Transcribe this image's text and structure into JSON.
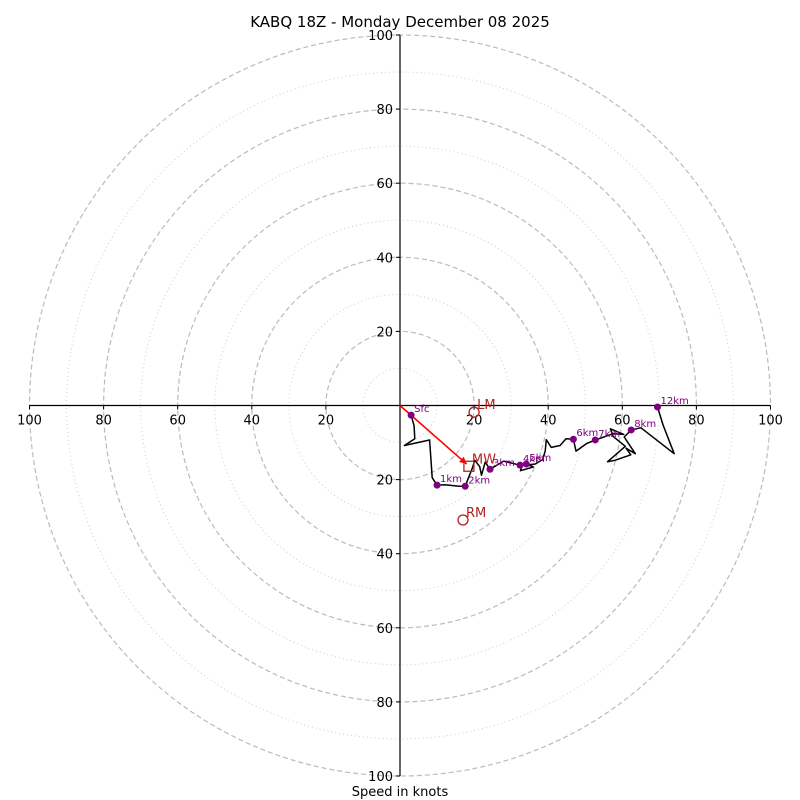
{
  "chart_data": {
    "type": "hodograph",
    "title": "KABQ 18Z - Monday December 08 2025",
    "xlabel": "Speed in knots",
    "ylabel": "",
    "range_kt": 100,
    "major_rings_kt": [
      20,
      40,
      60,
      80,
      100
    ],
    "minor_rings_kt": [
      10,
      30,
      50,
      70,
      90
    ],
    "tick_labels": {
      "left": [
        "100",
        "80",
        "60",
        "40",
        "20"
      ],
      "right": [
        "20",
        "40",
        "60",
        "80",
        "100"
      ],
      "top": [
        "20",
        "40",
        "60",
        "80",
        "100"
      ],
      "bottom": [
        "20",
        "40",
        "60",
        "80",
        "100"
      ]
    },
    "tick_values": [
      20,
      40,
      60,
      80,
      100
    ],
    "colors": {
      "trace": "#000000",
      "height_markers": "#800080",
      "storm_motion": "#b22222",
      "mean_wind_vector": "#ff0000",
      "rings": "#bbbbbb"
    },
    "trace_uv": [
      [
        3.0,
        -2.6
      ],
      [
        3.8,
        -5.5
      ],
      [
        4.0,
        -9.0
      ],
      [
        1.2,
        -10.8
      ],
      [
        8.0,
        -9.3
      ],
      [
        8.3,
        -14.0
      ],
      [
        8.7,
        -19.5
      ],
      [
        10.0,
        -21.5
      ],
      [
        12.0,
        -21.4
      ],
      [
        16.0,
        -21.8
      ],
      [
        17.6,
        -21.8
      ],
      [
        18.5,
        -19.5
      ],
      [
        19.5,
        -17.0
      ],
      [
        20.2,
        -14.8
      ],
      [
        21.5,
        -16.5
      ],
      [
        22.0,
        -18.8
      ],
      [
        23.0,
        -15.3
      ],
      [
        24.3,
        -17.2
      ],
      [
        28.0,
        -15.0
      ],
      [
        32.4,
        -16.1
      ],
      [
        34.1,
        -15.8
      ],
      [
        36.0,
        -16.6
      ],
      [
        32.5,
        -17.6
      ],
      [
        33.0,
        -16.2
      ],
      [
        36.5,
        -15.8
      ],
      [
        38.5,
        -14.6
      ],
      [
        39.2,
        -12.3
      ],
      [
        39.5,
        -9.2
      ],
      [
        40.8,
        -11.3
      ],
      [
        43.2,
        -10.8
      ],
      [
        44.8,
        -9.0
      ],
      [
        46.8,
        -9.1
      ],
      [
        47.5,
        -12.3
      ],
      [
        50.5,
        -10.2
      ],
      [
        52.7,
        -9.3
      ],
      [
        57.5,
        -7.6
      ],
      [
        60.4,
        -7.8
      ],
      [
        56.8,
        -6.3
      ],
      [
        57.5,
        -8.3
      ],
      [
        60.8,
        -11.0
      ],
      [
        56.0,
        -15.2
      ],
      [
        58.0,
        -14.8
      ],
      [
        62.3,
        -13.3
      ],
      [
        61.0,
        -11.5
      ],
      [
        63.5,
        -13.0
      ],
      [
        60.5,
        -8.5
      ],
      [
        62.4,
        -6.6
      ],
      [
        65.0,
        -6.0
      ],
      [
        74.0,
        -13.0
      ],
      [
        71.0,
        -5.3
      ],
      [
        69.5,
        -0.4
      ]
    ],
    "height_markers": [
      {
        "label": "Sfc",
        "u": 3.0,
        "v": -2.6
      },
      {
        "label": "1km",
        "u": 10.0,
        "v": -21.5
      },
      {
        "label": "2km",
        "u": 17.6,
        "v": -21.8
      },
      {
        "label": "3km",
        "u": 24.3,
        "v": -17.2
      },
      {
        "label": "4km",
        "u": 32.4,
        "v": -16.1
      },
      {
        "label": "5km",
        "u": 34.1,
        "v": -15.8
      },
      {
        "label": "6km",
        "u": 46.8,
        "v": -9.1
      },
      {
        "label": "7km",
        "u": 52.7,
        "v": -9.3
      },
      {
        "label": "8km",
        "u": 62.4,
        "v": -6.6
      },
      {
        "label": "12km",
        "u": 69.5,
        "v": -0.4
      }
    ],
    "storm_motion": [
      {
        "label": "LM",
        "u": 20.0,
        "v": -1.8,
        "marker": "circle"
      },
      {
        "label": "MW",
        "u": 18.6,
        "v": -16.4,
        "marker": "square"
      },
      {
        "label": "RM",
        "u": 17.0,
        "v": -30.9,
        "marker": "circle"
      }
    ],
    "mean_wind_arrow": {
      "from": [
        0,
        0
      ],
      "to": [
        18.0,
        -15.8
      ]
    }
  }
}
